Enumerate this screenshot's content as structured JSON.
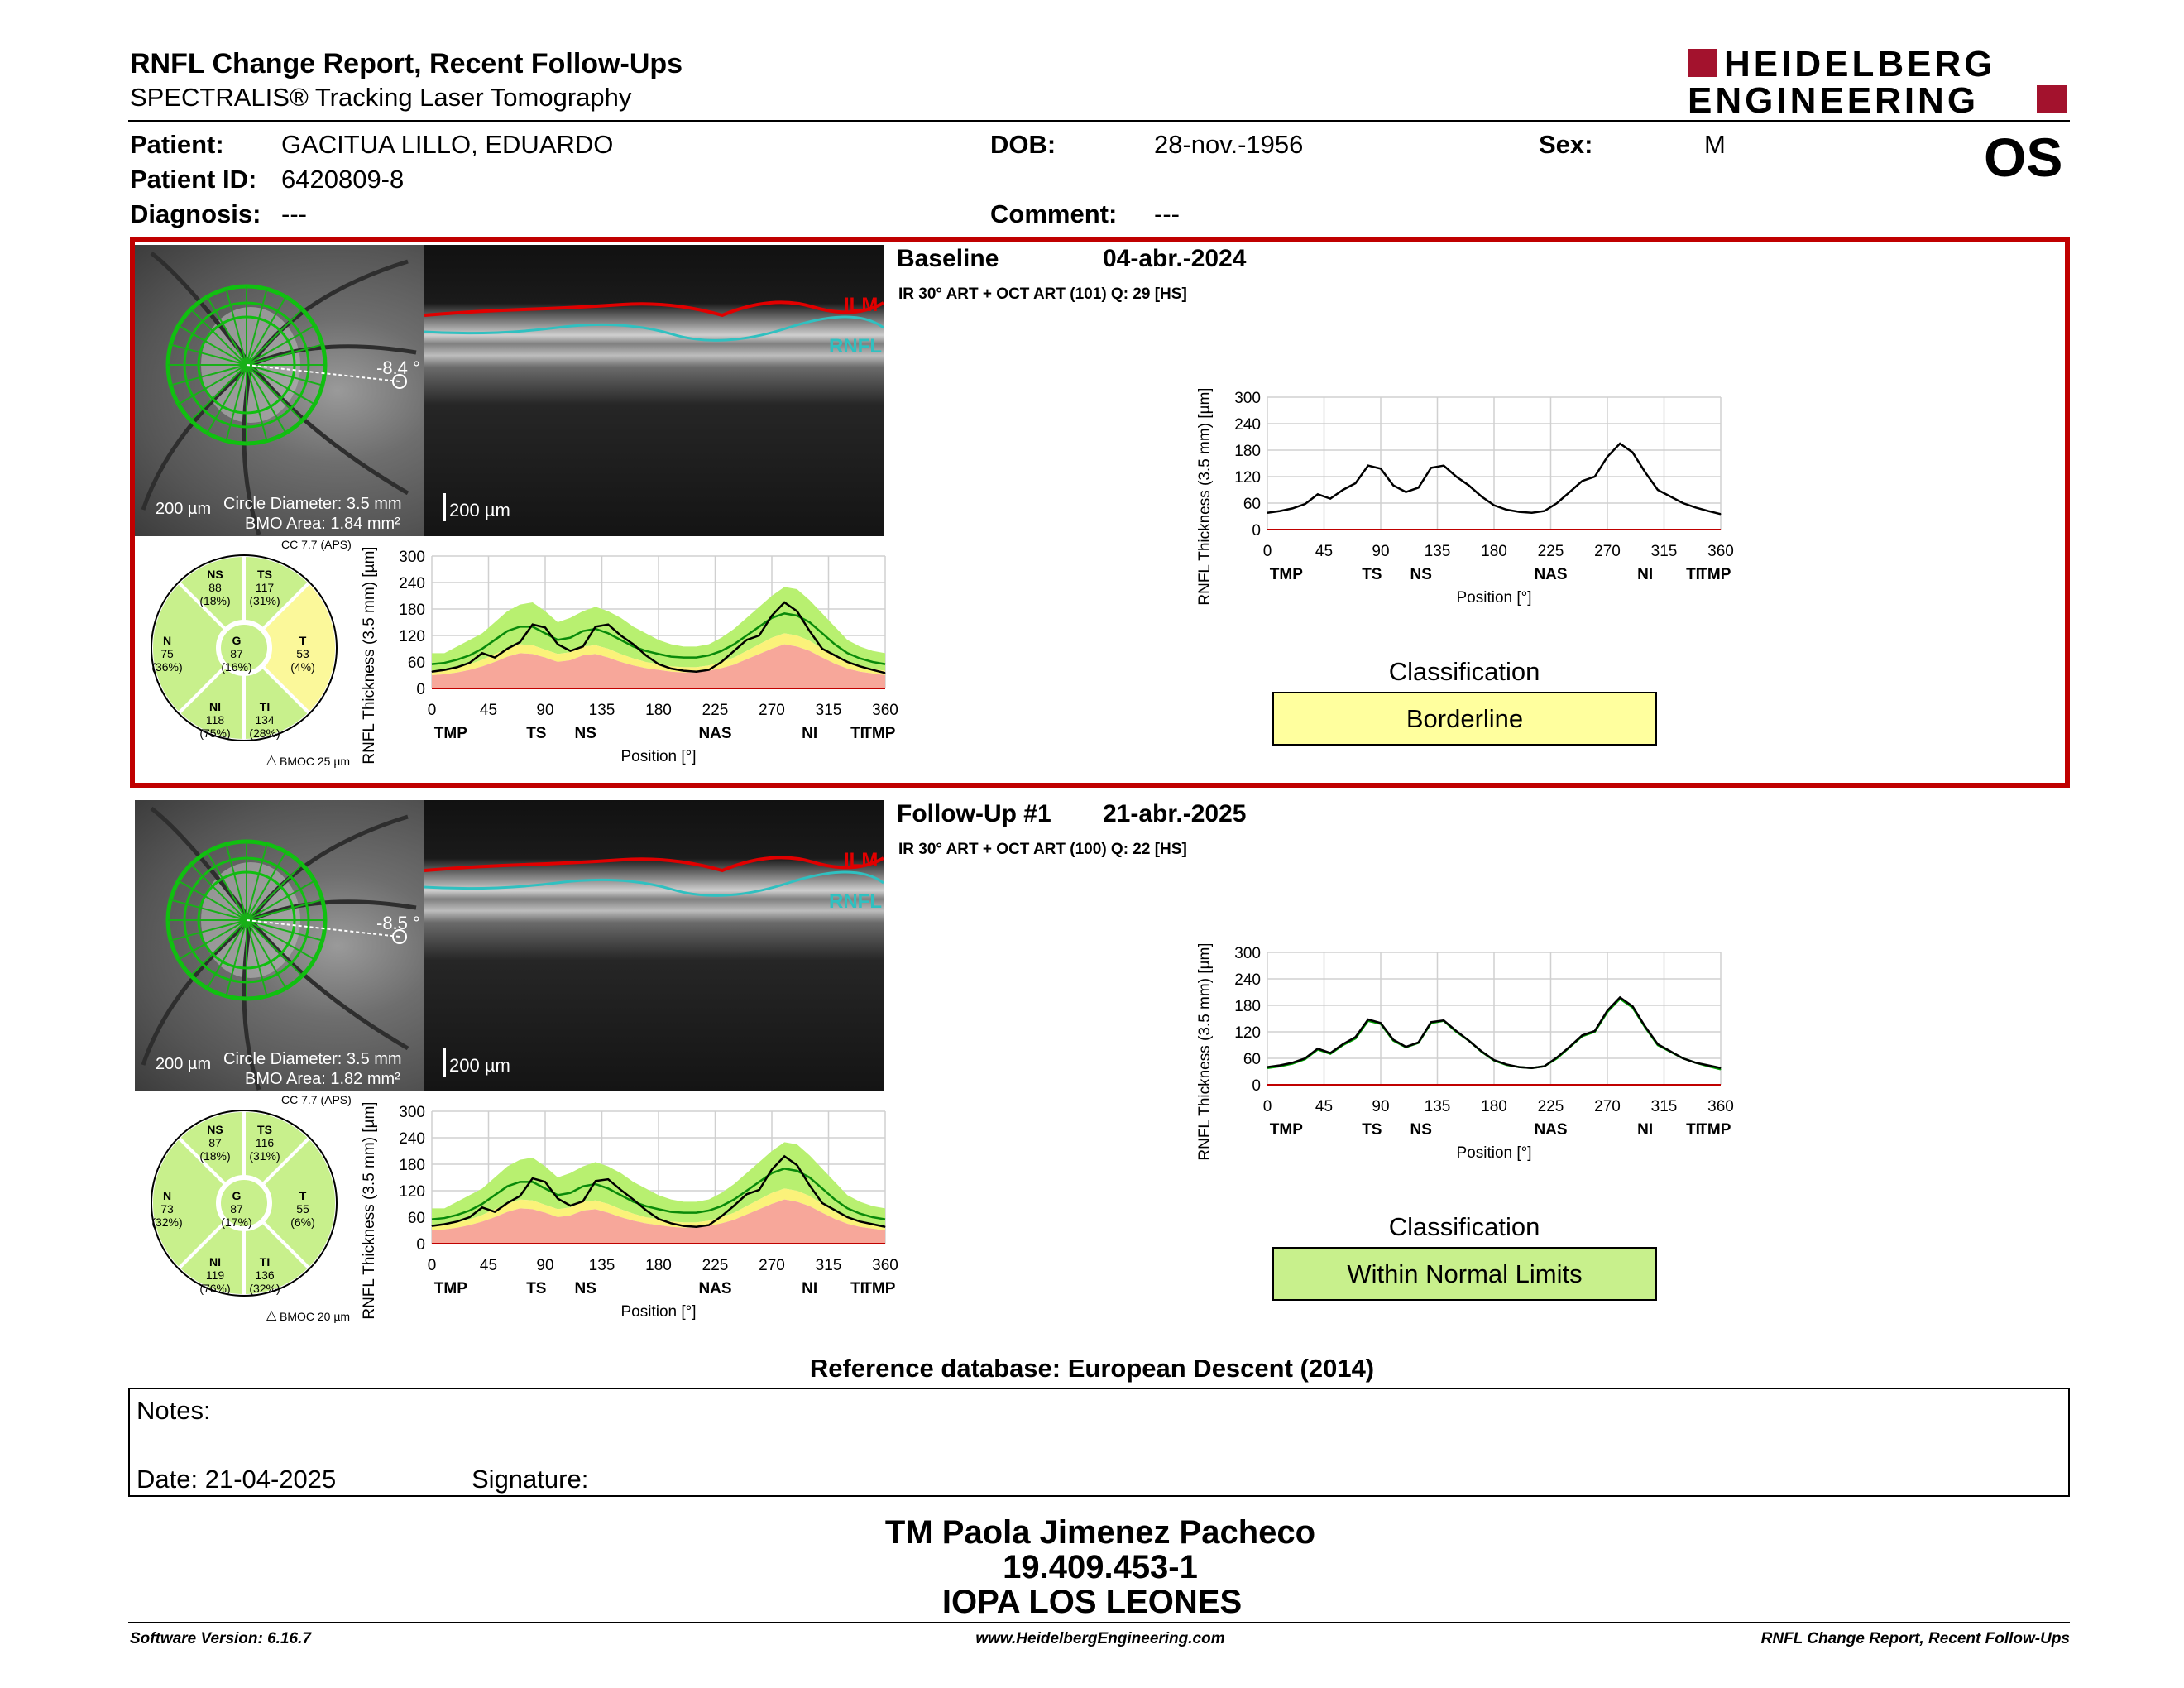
{
  "header": {
    "title": "RNFL Change Report, Recent Follow-Ups",
    "subtitle": "SPECTRALIS® Tracking Laser Tomography",
    "brand_line1": "HEIDELBERG",
    "brand_line2": "ENGINEERING",
    "eye": "OS"
  },
  "patient": {
    "patient_label": "Patient:",
    "patient_name": "GACITUA LILLO, EDUARDO",
    "dob_label": "DOB:",
    "dob": "28-nov.-1956",
    "sex_label": "Sex:",
    "sex": "M",
    "id_label": "Patient ID:",
    "id": "6420809-8",
    "diagnosis_label": "Diagnosis:",
    "diagnosis": "---",
    "comment_label": "Comment:",
    "comment": "---"
  },
  "exams": [
    {
      "name": "Baseline",
      "date": "04-abr.-2024",
      "scan_info": "IR 30° ART + OCT ART (101) Q: 29 [HS]",
      "angle": "-8.4 °",
      "scale_fundus": "200 µm",
      "scale_oct": "200 µm",
      "circle_diameter": "Circle Diameter: 3.5 mm",
      "bmo_area": "BMO Area: 1.84 mm²",
      "cc": "CC 7.7 (APS)",
      "bmoc": "BMOC 25 µm",
      "ilm_label": "ILM",
      "rnfl_label": "RNFL",
      "sectors": {
        "NS": [
          "NS",
          "88",
          "(18%)"
        ],
        "TS": [
          "TS",
          "117",
          "(31%)"
        ],
        "N": [
          "N",
          "75",
          "(36%)"
        ],
        "G": [
          "G",
          "87",
          "(16%)"
        ],
        "T": [
          "T",
          "53",
          "(4%)"
        ],
        "NI": [
          "NI",
          "118",
          "(75%)"
        ],
        "TI": [
          "TI",
          "134",
          "(28%)"
        ]
      },
      "sector_colors": {
        "NS": "#c8f08c",
        "TS": "#c8f08c",
        "N": "#c8f08c",
        "G": "#c8f08c",
        "T": "#fbf89a",
        "NI": "#c8f08c",
        "TI": "#c8f08c"
      },
      "classification_title": "Classification",
      "classification": "Borderline",
      "classification_color": "#ffff9e"
    },
    {
      "name": "Follow-Up #1",
      "date": "21-abr.-2025",
      "scan_info": "IR 30° ART + OCT ART (100) Q: 22 [HS]",
      "angle": "-8.5 °",
      "scale_fundus": "200 µm",
      "scale_oct": "200 µm",
      "circle_diameter": "Circle Diameter: 3.5 mm",
      "bmo_area": "BMO Area: 1.82 mm²",
      "cc": "CC 7.7 (APS)",
      "bmoc": "BMOC 20 µm",
      "ilm_label": "ILM",
      "rnfl_label": "RNFL",
      "sectors": {
        "NS": [
          "NS",
          "87",
          "(18%)"
        ],
        "TS": [
          "TS",
          "116",
          "(31%)"
        ],
        "N": [
          "N",
          "73",
          "(32%)"
        ],
        "G": [
          "G",
          "87",
          "(17%)"
        ],
        "T": [
          "T",
          "55",
          "(6%)"
        ],
        "NI": [
          "NI",
          "119",
          "(76%)"
        ],
        "TI": [
          "TI",
          "136",
          "(32%)"
        ]
      },
      "sector_colors": {
        "NS": "#c8f08c",
        "TS": "#c8f08c",
        "N": "#c8f08c",
        "G": "#c8f08c",
        "T": "#c8f08c",
        "NI": "#c8f08c",
        "TI": "#c8f08c"
      },
      "classification_title": "Classification",
      "classification": "Within Normal Limits",
      "classification_color": "#c8f08c"
    }
  ],
  "chart_data": [
    {
      "type": "line",
      "title": "",
      "xlabel": "Position [°]",
      "ylabel": "RNFL Thickness (3.5 mm) [µm]",
      "xlim": [
        0,
        360
      ],
      "ylim": [
        0,
        300
      ],
      "x_ticks": [
        "0",
        "45",
        "90",
        "135",
        "180",
        "225",
        "270",
        "315",
        "360"
      ],
      "y_ticks": [
        "0",
        "60",
        "120",
        "180",
        "240",
        "300"
      ],
      "sector_labels": [
        "TMP",
        "TS",
        "NS",
        "NAS",
        "NI",
        "TI",
        "TMP"
      ],
      "x": [
        0,
        10,
        20,
        30,
        40,
        50,
        60,
        70,
        80,
        90,
        100,
        110,
        120,
        130,
        140,
        150,
        160,
        170,
        180,
        190,
        200,
        210,
        220,
        230,
        240,
        250,
        260,
        270,
        280,
        290,
        300,
        310,
        320,
        330,
        340,
        350,
        360
      ],
      "series": [
        {
          "values": [
            38,
            42,
            48,
            58,
            80,
            70,
            90,
            105,
            145,
            138,
            100,
            85,
            95,
            140,
            145,
            120,
            100,
            75,
            55,
            45,
            40,
            38,
            42,
            60,
            85,
            110,
            120,
            165,
            195,
            175,
            130,
            90,
            75,
            60,
            50,
            42,
            35
          ]
        }
      ],
      "normative": {
        "upper_green": [
          80,
          80,
          95,
          110,
          125,
          150,
          175,
          190,
          195,
          175,
          150,
          160,
          175,
          185,
          175,
          160,
          140,
          125,
          110,
          100,
          95,
          95,
          100,
          115,
          135,
          160,
          185,
          210,
          230,
          225,
          200,
          170,
          140,
          110,
          95,
          85,
          80
        ],
        "mean": [
          55,
          58,
          65,
          75,
          90,
          110,
          130,
          140,
          140,
          125,
          110,
          115,
          130,
          135,
          125,
          110,
          95,
          85,
          78,
          72,
          70,
          70,
          75,
          85,
          100,
          120,
          140,
          160,
          170,
          165,
          150,
          125,
          100,
          80,
          68,
          60,
          55
        ],
        "lower_yellow": [
          40,
          42,
          48,
          55,
          65,
          78,
          90,
          100,
          98,
          88,
          78,
          82,
          95,
          98,
          90,
          78,
          68,
          60,
          55,
          50,
          48,
          48,
          52,
          60,
          70,
          85,
          100,
          115,
          125,
          120,
          108,
          90,
          72,
          58,
          48,
          44,
          40
        ],
        "lower_red": [
          30,
          32,
          36,
          42,
          50,
          60,
          72,
          80,
          78,
          70,
          60,
          64,
          75,
          78,
          70,
          60,
          52,
          46,
          42,
          38,
          36,
          36,
          40,
          46,
          54,
          66,
          78,
          90,
          100,
          95,
          85,
          70,
          56,
          45,
          38,
          34,
          30
        ]
      }
    },
    {
      "type": "line",
      "title": "",
      "xlabel": "Position [°]",
      "ylabel": "RNFL Thickness (3.5 mm) [µm]",
      "xlim": [
        0,
        360
      ],
      "ylim": [
        0,
        300
      ],
      "x_ticks": [
        "0",
        "45",
        "90",
        "135",
        "180",
        "225",
        "270",
        "315",
        "360"
      ],
      "y_ticks": [
        "0",
        "60",
        "120",
        "180",
        "240",
        "300"
      ],
      "sector_labels": [
        "TMP",
        "TS",
        "NS",
        "NAS",
        "NI",
        "TI",
        "TMP"
      ],
      "x": [
        0,
        10,
        20,
        30,
        40,
        50,
        60,
        70,
        80,
        90,
        100,
        110,
        120,
        130,
        140,
        150,
        160,
        170,
        180,
        190,
        200,
        210,
        220,
        230,
        240,
        250,
        260,
        270,
        280,
        290,
        300,
        310,
        320,
        330,
        340,
        350,
        360
      ],
      "series": [
        {
          "values": [
            40,
            44,
            50,
            60,
            82,
            72,
            92,
            108,
            148,
            140,
            102,
            86,
            96,
            142,
            146,
            122,
            100,
            76,
            56,
            46,
            40,
            38,
            42,
            62,
            86,
            112,
            122,
            168,
            198,
            178,
            132,
            92,
            76,
            60,
            50,
            44,
            38
          ]
        }
      ],
      "normative": {
        "upper_green": [
          80,
          80,
          95,
          110,
          125,
          150,
          175,
          190,
          195,
          175,
          150,
          160,
          175,
          185,
          175,
          160,
          140,
          125,
          110,
          100,
          95,
          95,
          100,
          115,
          135,
          160,
          185,
          210,
          230,
          225,
          200,
          170,
          140,
          110,
          95,
          85,
          80
        ],
        "mean": [
          55,
          58,
          65,
          75,
          90,
          110,
          130,
          140,
          140,
          125,
          110,
          115,
          130,
          135,
          125,
          110,
          95,
          85,
          78,
          72,
          70,
          70,
          75,
          85,
          100,
          120,
          140,
          160,
          170,
          165,
          150,
          125,
          100,
          80,
          68,
          60,
          55
        ],
        "lower_yellow": [
          40,
          42,
          48,
          55,
          65,
          78,
          90,
          100,
          98,
          88,
          78,
          82,
          95,
          98,
          90,
          78,
          68,
          60,
          55,
          50,
          48,
          48,
          52,
          60,
          70,
          85,
          100,
          115,
          125,
          120,
          108,
          90,
          72,
          58,
          48,
          44,
          40
        ],
        "lower_red": [
          30,
          32,
          36,
          42,
          50,
          60,
          72,
          80,
          78,
          70,
          60,
          64,
          75,
          78,
          70,
          60,
          52,
          46,
          42,
          38,
          36,
          36,
          40,
          46,
          54,
          66,
          78,
          90,
          100,
          95,
          85,
          70,
          56,
          45,
          38,
          34,
          30
        ]
      }
    },
    {
      "type": "line",
      "title": "",
      "xlabel": "Position [°]",
      "ylabel": "RNFL Thickness (3.5 mm) [µm]",
      "xlim": [
        0,
        360
      ],
      "ylim": [
        0,
        300
      ],
      "x_ticks": [
        "0",
        "45",
        "90",
        "135",
        "180",
        "225",
        "270",
        "315",
        "360"
      ],
      "y_ticks": [
        "0",
        "60",
        "120",
        "180",
        "240",
        "300"
      ],
      "sector_labels": [
        "TMP",
        "TS",
        "NS",
        "NAS",
        "NI",
        "TI",
        "TMP"
      ],
      "x": [
        0,
        10,
        20,
        30,
        40,
        50,
        60,
        70,
        80,
        90,
        100,
        110,
        120,
        130,
        140,
        150,
        160,
        170,
        180,
        190,
        200,
        210,
        220,
        230,
        240,
        250,
        260,
        270,
        280,
        290,
        300,
        310,
        320,
        330,
        340,
        350,
        360
      ],
      "series": [
        {
          "values": [
            38,
            42,
            48,
            58,
            80,
            70,
            90,
            105,
            145,
            138,
            100,
            85,
            95,
            140,
            145,
            120,
            100,
            75,
            55,
            45,
            40,
            38,
            42,
            60,
            85,
            110,
            120,
            165,
            195,
            175,
            130,
            90,
            75,
            60,
            50,
            42,
            35
          ]
        }
      ]
    },
    {
      "type": "line",
      "title": "",
      "xlabel": "Position [°]",
      "ylabel": "RNFL Thickness (3.5 mm) [µm]",
      "xlim": [
        0,
        360
      ],
      "ylim": [
        0,
        300
      ],
      "x_ticks": [
        "0",
        "45",
        "90",
        "135",
        "180",
        "225",
        "270",
        "315",
        "360"
      ],
      "y_ticks": [
        "0",
        "60",
        "120",
        "180",
        "240",
        "300"
      ],
      "sector_labels": [
        "TMP",
        "TS",
        "NS",
        "NAS",
        "NI",
        "TI",
        "TMP"
      ],
      "x": [
        0,
        10,
        20,
        30,
        40,
        50,
        60,
        70,
        80,
        90,
        100,
        110,
        120,
        130,
        140,
        150,
        160,
        170,
        180,
        190,
        200,
        210,
        220,
        230,
        240,
        250,
        260,
        270,
        280,
        290,
        300,
        310,
        320,
        330,
        340,
        350,
        360
      ],
      "series": [
        {
          "values": [
            38,
            42,
            48,
            58,
            80,
            70,
            90,
            105,
            145,
            138,
            100,
            85,
            95,
            140,
            145,
            120,
            100,
            75,
            55,
            45,
            40,
            38,
            42,
            60,
            85,
            110,
            120,
            165,
            195,
            175,
            130,
            90,
            75,
            60,
            50,
            42,
            35
          ]
        },
        {
          "values": [
            40,
            44,
            50,
            60,
            82,
            72,
            92,
            108,
            148,
            140,
            102,
            86,
            96,
            142,
            146,
            122,
            100,
            76,
            56,
            46,
            40,
            38,
            42,
            62,
            86,
            112,
            122,
            168,
            198,
            178,
            132,
            92,
            76,
            60,
            50,
            44,
            38
          ]
        }
      ],
      "colors": [
        "#00a000",
        "#000000"
      ]
    }
  ],
  "reference_db": "Reference database: European Descent (2014)",
  "notes": {
    "notes_label": "Notes:",
    "date_label": "Date: 21-04-2025",
    "signature_label": "Signature:"
  },
  "signature_block": {
    "name": "TM Paola Jimenez Pacheco",
    "rut": "19.409.453-1",
    "institution": "IOPA LOS LEONES"
  },
  "footer": {
    "software": "Software Version: 6.16.7",
    "website": "www.HeidelbergEngineering.com",
    "report_name": "RNFL Change Report, Recent Follow-Ups"
  }
}
